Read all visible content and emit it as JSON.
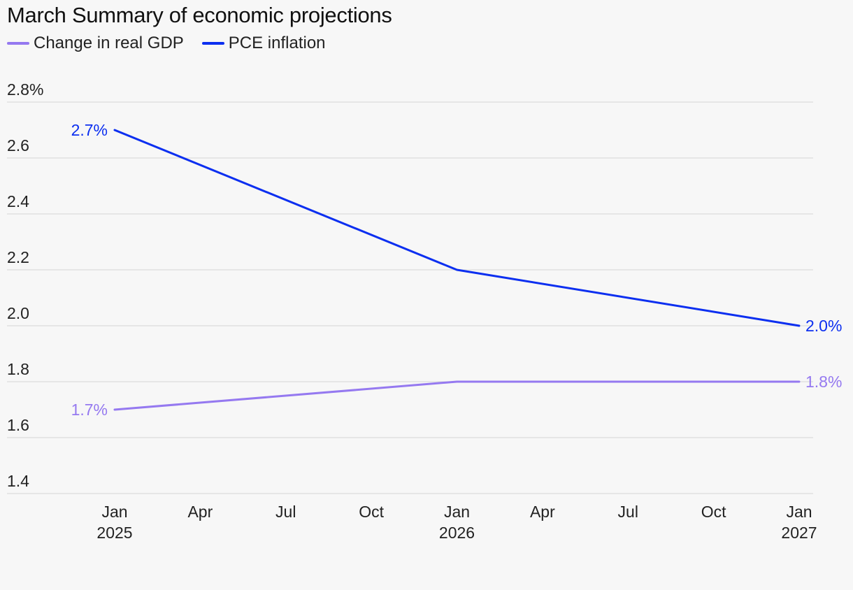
{
  "chart_data": {
    "type": "line",
    "title": "March Summary of economic projections",
    "xlabel": "",
    "ylabel": "",
    "ylim": [
      1.4,
      2.8
    ],
    "yticks": [
      {
        "value": 1.4,
        "label": "1.4"
      },
      {
        "value": 1.6,
        "label": "1.6"
      },
      {
        "value": 1.8,
        "label": "1.8"
      },
      {
        "value": 2.0,
        "label": "2.0"
      },
      {
        "value": 2.2,
        "label": "2.2"
      },
      {
        "value": 2.4,
        "label": "2.4"
      },
      {
        "value": 2.6,
        "label": "2.6"
      },
      {
        "value": 2.8,
        "label": "2.8%"
      }
    ],
    "xlim": [
      "2025-01",
      "2027-01"
    ],
    "xticks": [
      {
        "value": "2025-01",
        "label": "Jan",
        "sublabel": "2025"
      },
      {
        "value": "2025-04",
        "label": "Apr",
        "sublabel": ""
      },
      {
        "value": "2025-07",
        "label": "Jul",
        "sublabel": ""
      },
      {
        "value": "2025-10",
        "label": "Oct",
        "sublabel": ""
      },
      {
        "value": "2026-01",
        "label": "Jan",
        "sublabel": "2026"
      },
      {
        "value": "2026-04",
        "label": "Apr",
        "sublabel": ""
      },
      {
        "value": "2026-07",
        "label": "Jul",
        "sublabel": ""
      },
      {
        "value": "2026-10",
        "label": "Oct",
        "sublabel": ""
      },
      {
        "value": "2027-01",
        "label": "Jan",
        "sublabel": "2027"
      }
    ],
    "grid": true,
    "legend_position": "top-left",
    "series": [
      {
        "name": "Change in real GDP",
        "color": "#9579f0",
        "x": [
          "2025-01",
          "2026-01",
          "2027-01"
        ],
        "values": [
          1.7,
          1.8,
          1.8
        ],
        "start_label": "1.7%",
        "end_label": "1.8%"
      },
      {
        "name": "PCE inflation",
        "color": "#0c2ff0",
        "x": [
          "2025-01",
          "2026-01",
          "2027-01"
        ],
        "values": [
          2.7,
          2.2,
          2.0
        ],
        "start_label": "2.7%",
        "end_label": "2.0%"
      }
    ]
  }
}
